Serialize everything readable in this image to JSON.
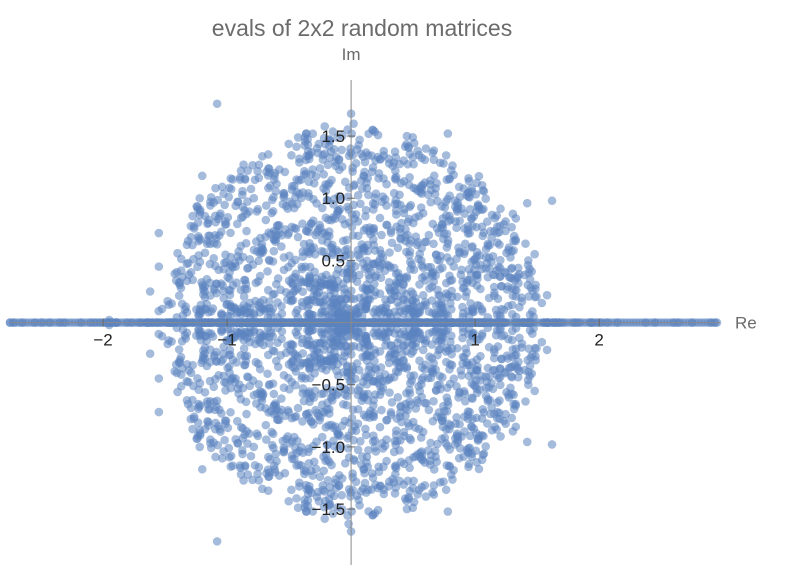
{
  "chart_data": {
    "type": "scatter",
    "title": "evals of 2x2 random matrices",
    "xlabel": "Re",
    "ylabel": "Im",
    "xlim": [
      -2.75,
      2.95
    ],
    "ylim": [
      -1.95,
      1.75
    ],
    "x_ticks": [
      {
        "value": -2,
        "label": "−2"
      },
      {
        "value": -1,
        "label": "−1"
      },
      {
        "value": 1,
        "label": "1"
      },
      {
        "value": 2,
        "label": "2"
      }
    ],
    "y_ticks": [
      {
        "value": -1.5,
        "label": "−1.5"
      },
      {
        "value": -1.0,
        "label": "−1.0"
      },
      {
        "value": -0.5,
        "label": "−0.5"
      },
      {
        "value": 0.5,
        "label": "0.5"
      },
      {
        "value": 1.0,
        "label": "1.0"
      },
      {
        "value": 1.5,
        "label": "1.5"
      }
    ],
    "grid": false,
    "legend": "none",
    "point_color": "#5b84bf",
    "points": [
      [
        -1.08,
        1.76
      ],
      [
        -1.08,
        -1.76
      ],
      [
        0.0,
        1.68
      ],
      [
        0.0,
        -1.68
      ],
      [
        -0.36,
        1.52
      ],
      [
        -0.36,
        -1.52
      ],
      [
        0.45,
        1.5
      ],
      [
        0.45,
        -1.5
      ],
      [
        0.78,
        1.52
      ],
      [
        0.78,
        -1.52
      ],
      [
        -0.02,
        -1.62
      ],
      [
        0.02,
        1.6
      ],
      [
        -1.55,
        0.72
      ],
      [
        -1.55,
        -0.72
      ],
      [
        -1.62,
        0.25
      ],
      [
        -1.62,
        -0.25
      ],
      [
        -1.55,
        -0.45
      ],
      [
        -1.55,
        0.45
      ],
      [
        1.42,
        0.96
      ],
      [
        1.42,
        -0.96
      ],
      [
        1.62,
        0.98
      ],
      [
        1.62,
        -0.98
      ],
      [
        1.48,
        -0.55
      ],
      [
        1.48,
        0.55
      ],
      [
        1.58,
        0.22
      ],
      [
        1.58,
        -0.22
      ],
      [
        -1.2,
        -1.18
      ],
      [
        -1.2,
        1.18
      ],
      [
        -1.95,
        0.02
      ],
      [
        -1.95,
        -0.02
      ],
      [
        -2.72,
        0.0
      ],
      [
        -2.55,
        0.0
      ],
      [
        -2.35,
        0.0
      ],
      [
        -2.1,
        0.0
      ],
      [
        2.45,
        0.0
      ],
      [
        2.6,
        0.0
      ],
      [
        2.75,
        0.0
      ],
      [
        2.9,
        0.0
      ]
    ],
    "real_axis_band": {
      "from": -2.75,
      "to": 2.95,
      "density_note": "dense run of points along Im = 0 from about −2.7 to 2.9"
    },
    "cloud": {
      "center": [
        0,
        0
      ],
      "radius": 1.6,
      "count": 2600
    }
  }
}
